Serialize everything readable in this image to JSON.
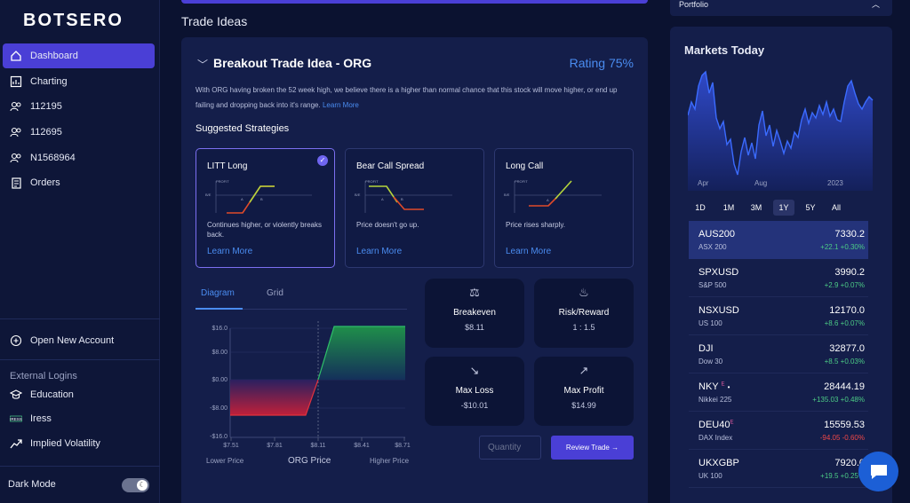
{
  "brand": {
    "logo": "BOTSERO"
  },
  "sidebar": {
    "items": [
      {
        "label": "Dashboard"
      },
      {
        "label": "Charting"
      },
      {
        "label": "112195"
      },
      {
        "label": "112695"
      },
      {
        "label": "N1568964"
      },
      {
        "label": "Orders"
      }
    ],
    "open_account": "Open New Account",
    "external_logins_title": "External Logins",
    "external": [
      {
        "label": "Education"
      },
      {
        "label": "Iress"
      },
      {
        "label": "Implied Volatility"
      }
    ],
    "dark_mode": "Dark Mode"
  },
  "main": {
    "section_title": "Trade Ideas",
    "idea": {
      "title": "Breakout Trade Idea - ORG",
      "rating": "Rating 75%",
      "description": "With ORG having broken the 52 week high, we believe there is a higher than normal chance that this stock will move higher, or end up failing and dropping back into it's range.",
      "learn_more": "Learn More"
    },
    "strategies_title": "Suggested Strategies",
    "strategies": [
      {
        "name": "LITT Long",
        "description": "Continues higher, or violently breaks back.",
        "learn_more": "Learn More",
        "selected": true
      },
      {
        "name": "Bear Call Spread",
        "description": "Price doesn't go up.",
        "learn_more": "Learn More",
        "selected": false
      },
      {
        "name": "Long Call",
        "description": "Price rises sharply.",
        "learn_more": "Learn More",
        "selected": false
      }
    ],
    "mini_labels": {
      "profit": "PROFIT",
      "be": "B/E",
      "a": "A",
      "b": "B"
    },
    "tabs": [
      {
        "label": "Diagram",
        "active": true
      },
      {
        "label": "Grid",
        "active": false
      }
    ],
    "payoff": {
      "y_ticks": [
        "$16.0",
        "$8.00",
        "$0.00",
        "-$8.00",
        "-$16.0"
      ],
      "x_ticks": [
        "$7.51",
        "$7.81",
        "$8.11",
        "$8.41",
        "$8.71"
      ],
      "lower_label": "Lower Price",
      "center_label": "ORG Price",
      "higher_label": "Higher Price"
    },
    "stats": [
      {
        "label": "Breakeven",
        "value": "$8.11",
        "icon": "scale-icon"
      },
      {
        "label": "Risk/Reward",
        "value": "1 : 1.5",
        "icon": "flame-icon"
      },
      {
        "label": "Max Loss",
        "value": "-$10.01",
        "icon": "trend-down-icon"
      },
      {
        "label": "Max Profit",
        "value": "$14.99",
        "icon": "trend-up-icon"
      }
    ],
    "quantity_placeholder": "Quantity",
    "review_button": "Review Trade"
  },
  "portfolio": {
    "label": "Portfolio"
  },
  "markets": {
    "title": "Markets Today",
    "x_labels": [
      "Apr",
      "Aug",
      "2023"
    ],
    "ranges": [
      "1D",
      "1M",
      "3M",
      "1Y",
      "5Y",
      "All"
    ],
    "active_range": "1Y",
    "rows": [
      {
        "ticker": "AUS200",
        "name": "ASX 200",
        "price": "7330.2",
        "change": "+22.1",
        "pct": "+0.30%",
        "dir": "up"
      },
      {
        "ticker": "SPXUSD",
        "name": "S&P 500",
        "price": "3990.2",
        "change": "+2.9",
        "pct": "+0.07%",
        "dir": "up"
      },
      {
        "ticker": "NSXUSD",
        "name": "US 100",
        "price": "12170.0",
        "change": "+8.6",
        "pct": "+0.07%",
        "dir": "up"
      },
      {
        "ticker": "DJI",
        "name": "Dow 30",
        "price": "32877.0",
        "change": "+8.5",
        "pct": "+0.03%",
        "dir": "up"
      },
      {
        "ticker": "NKY",
        "name": "Nikkei 225",
        "price": "28444.19",
        "change": "+135.03",
        "pct": "+0.48%",
        "dir": "up"
      },
      {
        "ticker": "DEU40",
        "name": "DAX Index",
        "price": "15559.53",
        "change": "-94.05",
        "pct": "-0.60%",
        "dir": "down"
      },
      {
        "ticker": "UKXGBP",
        "name": "UK 100",
        "price": "7920.0",
        "change": "+19.5",
        "pct": "+0.25%",
        "dir": "up"
      }
    ]
  },
  "colors": {
    "accent": "#4a3fd6",
    "link": "#4a8cf0",
    "up": "#4ccb86",
    "down": "#f04848"
  }
}
